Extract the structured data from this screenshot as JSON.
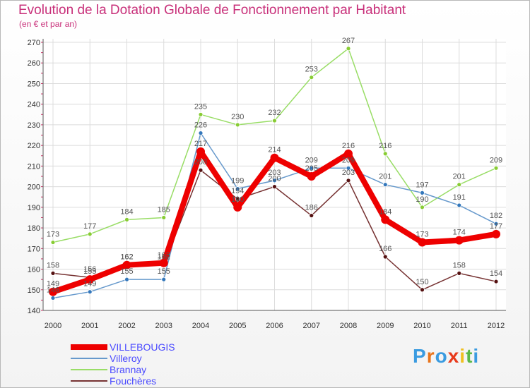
{
  "title": "Evolution de la Dotation Globale de Fonctionnement par Habitant",
  "subtitle": "(en € et par an)",
  "logo": {
    "text": "Proxiti",
    "colors": [
      "#3a9be0",
      "#e8741c",
      "#3a9be0",
      "#e83a1c",
      "#f0c020",
      "#5ab848",
      "#3a9be0"
    ]
  },
  "chart_data": {
    "type": "line",
    "x": [
      "2000",
      "2001",
      "2002",
      "2003",
      "2004",
      "2005",
      "2006",
      "2007",
      "2008",
      "2009",
      "2010",
      "2011",
      "2012"
    ],
    "ylim": [
      140,
      270
    ],
    "yticks": [
      140,
      150,
      160,
      170,
      180,
      190,
      200,
      210,
      220,
      230,
      240,
      250,
      260,
      270
    ],
    "grid": true,
    "legend_position": "bottom-left",
    "series": [
      {
        "name": "Brannay",
        "color": "#99dd66",
        "marker": "#88cc33",
        "width": 1.5,
        "values": [
          173,
          177,
          184,
          185,
          235,
          230,
          232,
          253,
          267,
          216,
          190,
          201,
          209
        ]
      },
      {
        "name": "Villeroy",
        "color": "#6699cc",
        "marker": "#3377bb",
        "width": 1.5,
        "values": [
          146,
          149,
          155,
          155,
          226,
          199,
          203,
          209,
          209,
          201,
          197,
          191,
          182
        ]
      },
      {
        "name": "Fouchères",
        "color": "#773333",
        "marker": "#551111",
        "width": 1.5,
        "values": [
          158,
          156,
          162,
          162,
          208,
          194,
          200,
          186,
          203,
          166,
          150,
          158,
          154
        ]
      },
      {
        "name": "VILLEBOUGIS",
        "color": "#ee0000",
        "marker": "#ee0000",
        "width": 8,
        "values": [
          149,
          155,
          162,
          163,
          217,
          190,
          214,
          205,
          216,
          184,
          173,
          174,
          177
        ]
      }
    ]
  }
}
